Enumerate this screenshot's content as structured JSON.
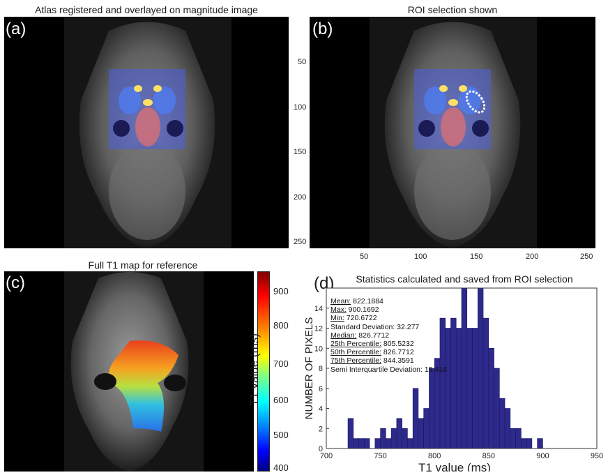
{
  "panels": {
    "a": {
      "label": "(a)",
      "title": "Atlas registered and overlayed on magnitude image"
    },
    "b": {
      "label": "(b)",
      "title": "ROI selection shown",
      "y_ticks": [
        "50",
        "100",
        "150",
        "200",
        "250"
      ],
      "x_ticks": [
        "50",
        "100",
        "150",
        "200",
        "250"
      ]
    },
    "c": {
      "label": "(c)",
      "title": "Full T1 map for reference",
      "colorbar": {
        "label": "T1 value (ms)",
        "ticks": [
          "900",
          "800",
          "700",
          "600",
          "500",
          "400"
        ]
      }
    },
    "d": {
      "label": "(d)",
      "title": "Statistics calculated and saved from ROI selection"
    }
  },
  "stats": {
    "mean_label": "Mean:",
    "mean": " 822.1884",
    "max_label": "Max:",
    "max": " 900.1692",
    "min_label": "Min:",
    "min": " 720.6722",
    "std": "Standard Deviation: 32.277",
    "median_label": "Median:",
    "median": " 826.7712",
    "p25_label": "25th Percentile:",
    "p25": " 805.5232",
    "p50_label": "50th Percentile:",
    "p50": " 826.7712",
    "p75_label": "75th Percentile:",
    "p75": " 844.3591",
    "siqd": "Semi Interquartile Deviation: 19.418"
  },
  "colors": {
    "bar": "#2e2a8c",
    "atlas": "#4a5fe0",
    "roi": "#ffffff"
  },
  "chart_data": {
    "type": "bar",
    "title": "Statistics calculated and saved from ROI selection",
    "xlabel": "T1 value (ms)",
    "ylabel": "NUMBER OF PIXELS",
    "xlim": [
      700,
      950
    ],
    "ylim": [
      0,
      16
    ],
    "x_ticks": [
      700,
      750,
      800,
      850,
      900,
      950
    ],
    "y_ticks": [
      0,
      2,
      4,
      6,
      8,
      10,
      12,
      14
    ],
    "bin_width": 5,
    "bins": [
      {
        "x": 720,
        "value": 3
      },
      {
        "x": 725,
        "value": 1
      },
      {
        "x": 730,
        "value": 1
      },
      {
        "x": 735,
        "value": 1
      },
      {
        "x": 740,
        "value": 0
      },
      {
        "x": 745,
        "value": 1
      },
      {
        "x": 750,
        "value": 2
      },
      {
        "x": 755,
        "value": 1
      },
      {
        "x": 760,
        "value": 2
      },
      {
        "x": 765,
        "value": 3
      },
      {
        "x": 770,
        "value": 2
      },
      {
        "x": 775,
        "value": 1
      },
      {
        "x": 780,
        "value": 6
      },
      {
        "x": 785,
        "value": 3
      },
      {
        "x": 790,
        "value": 4
      },
      {
        "x": 795,
        "value": 8
      },
      {
        "x": 800,
        "value": 9
      },
      {
        "x": 805,
        "value": 13
      },
      {
        "x": 810,
        "value": 12
      },
      {
        "x": 815,
        "value": 13
      },
      {
        "x": 820,
        "value": 12
      },
      {
        "x": 825,
        "value": 17
      },
      {
        "x": 830,
        "value": 12
      },
      {
        "x": 835,
        "value": 12
      },
      {
        "x": 840,
        "value": 17
      },
      {
        "x": 845,
        "value": 13
      },
      {
        "x": 850,
        "value": 10
      },
      {
        "x": 855,
        "value": 8
      },
      {
        "x": 860,
        "value": 5
      },
      {
        "x": 865,
        "value": 4
      },
      {
        "x": 870,
        "value": 2
      },
      {
        "x": 875,
        "value": 2
      },
      {
        "x": 880,
        "value": 1
      },
      {
        "x": 885,
        "value": 1
      },
      {
        "x": 890,
        "value": 0
      },
      {
        "x": 895,
        "value": 1
      }
    ]
  }
}
